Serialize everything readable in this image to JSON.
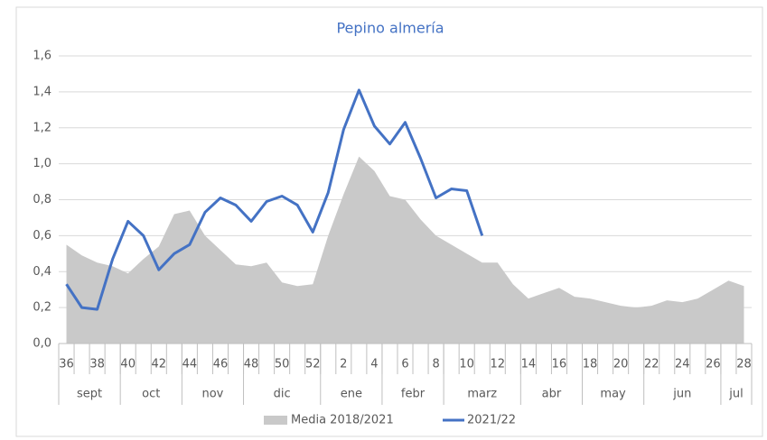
{
  "chart_data": {
    "type": "line",
    "title": "Pepino almería",
    "categories": [
      "36",
      null,
      "38",
      null,
      "40",
      null,
      "42",
      null,
      "44",
      null,
      "46",
      null,
      "48",
      null,
      "50",
      null,
      "52",
      null,
      "2",
      null,
      "4",
      null,
      "6",
      null,
      "8",
      null,
      "10",
      null,
      "12",
      null,
      "14",
      null,
      "16",
      null,
      "18",
      null,
      "20",
      null,
      "22",
      null,
      "24",
      null,
      "26",
      null,
      "28"
    ],
    "months": [
      "sept",
      null,
      null,
      null,
      "oct",
      null,
      null,
      null,
      "nov",
      null,
      null,
      null,
      "dic",
      null,
      null,
      null,
      null,
      "ene",
      null,
      null,
      null,
      "febr",
      null,
      null,
      null,
      "marz",
      null,
      null,
      null,
      null,
      "abr",
      null,
      null,
      null,
      "may",
      null,
      null,
      null,
      "jun",
      null,
      null,
      null,
      null,
      "jul",
      null
    ],
    "series": [
      {
        "name": "Media 2018/2021",
        "kind": "area",
        "color": "#c9c9c9",
        "values": [
          0.55,
          0.49,
          0.45,
          0.43,
          0.39,
          0.47,
          0.54,
          0.72,
          0.74,
          0.6,
          0.52,
          0.44,
          0.43,
          0.45,
          0.34,
          0.32,
          0.33,
          0.6,
          0.83,
          1.04,
          0.96,
          0.82,
          0.8,
          0.69,
          0.6,
          0.55,
          0.5,
          0.45,
          0.45,
          0.33,
          0.25,
          0.28,
          0.31,
          0.26,
          0.25,
          0.23,
          0.21,
          0.2,
          0.21,
          0.24,
          0.23,
          0.25,
          0.3,
          0.35,
          0.32
        ]
      },
      {
        "name": "2021/22",
        "kind": "line",
        "color": "#4472c4",
        "values": [
          0.33,
          0.2,
          0.19,
          0.47,
          0.68,
          0.6,
          0.41,
          0.5,
          0.55,
          0.73,
          0.81,
          0.77,
          0.68,
          0.79,
          0.82,
          0.77,
          0.62,
          0.84,
          1.19,
          1.41,
          1.21,
          1.11,
          1.23,
          1.03,
          0.81,
          0.86,
          0.85,
          0.6,
          null,
          null,
          null,
          null,
          null,
          null,
          null,
          null,
          null,
          null,
          null,
          null,
          null,
          null,
          null,
          null,
          null
        ]
      }
    ],
    "ylim": [
      0,
      1.6
    ],
    "yticks": [
      {
        "value": 0,
        "label": "0,0"
      },
      {
        "value": 0.2,
        "label": "0,2"
      },
      {
        "value": 0.4,
        "label": "0,4"
      },
      {
        "value": 0.6,
        "label": "0,6"
      },
      {
        "value": 0.8,
        "label": "0,8"
      },
      {
        "value": 1.0,
        "label": "1,0"
      },
      {
        "value": 1.2,
        "label": "1,2"
      },
      {
        "value": 1.4,
        "label": "1,4"
      },
      {
        "value": 1.6,
        "label": "1,6"
      }
    ],
    "grid": true,
    "legend": "bottom"
  }
}
